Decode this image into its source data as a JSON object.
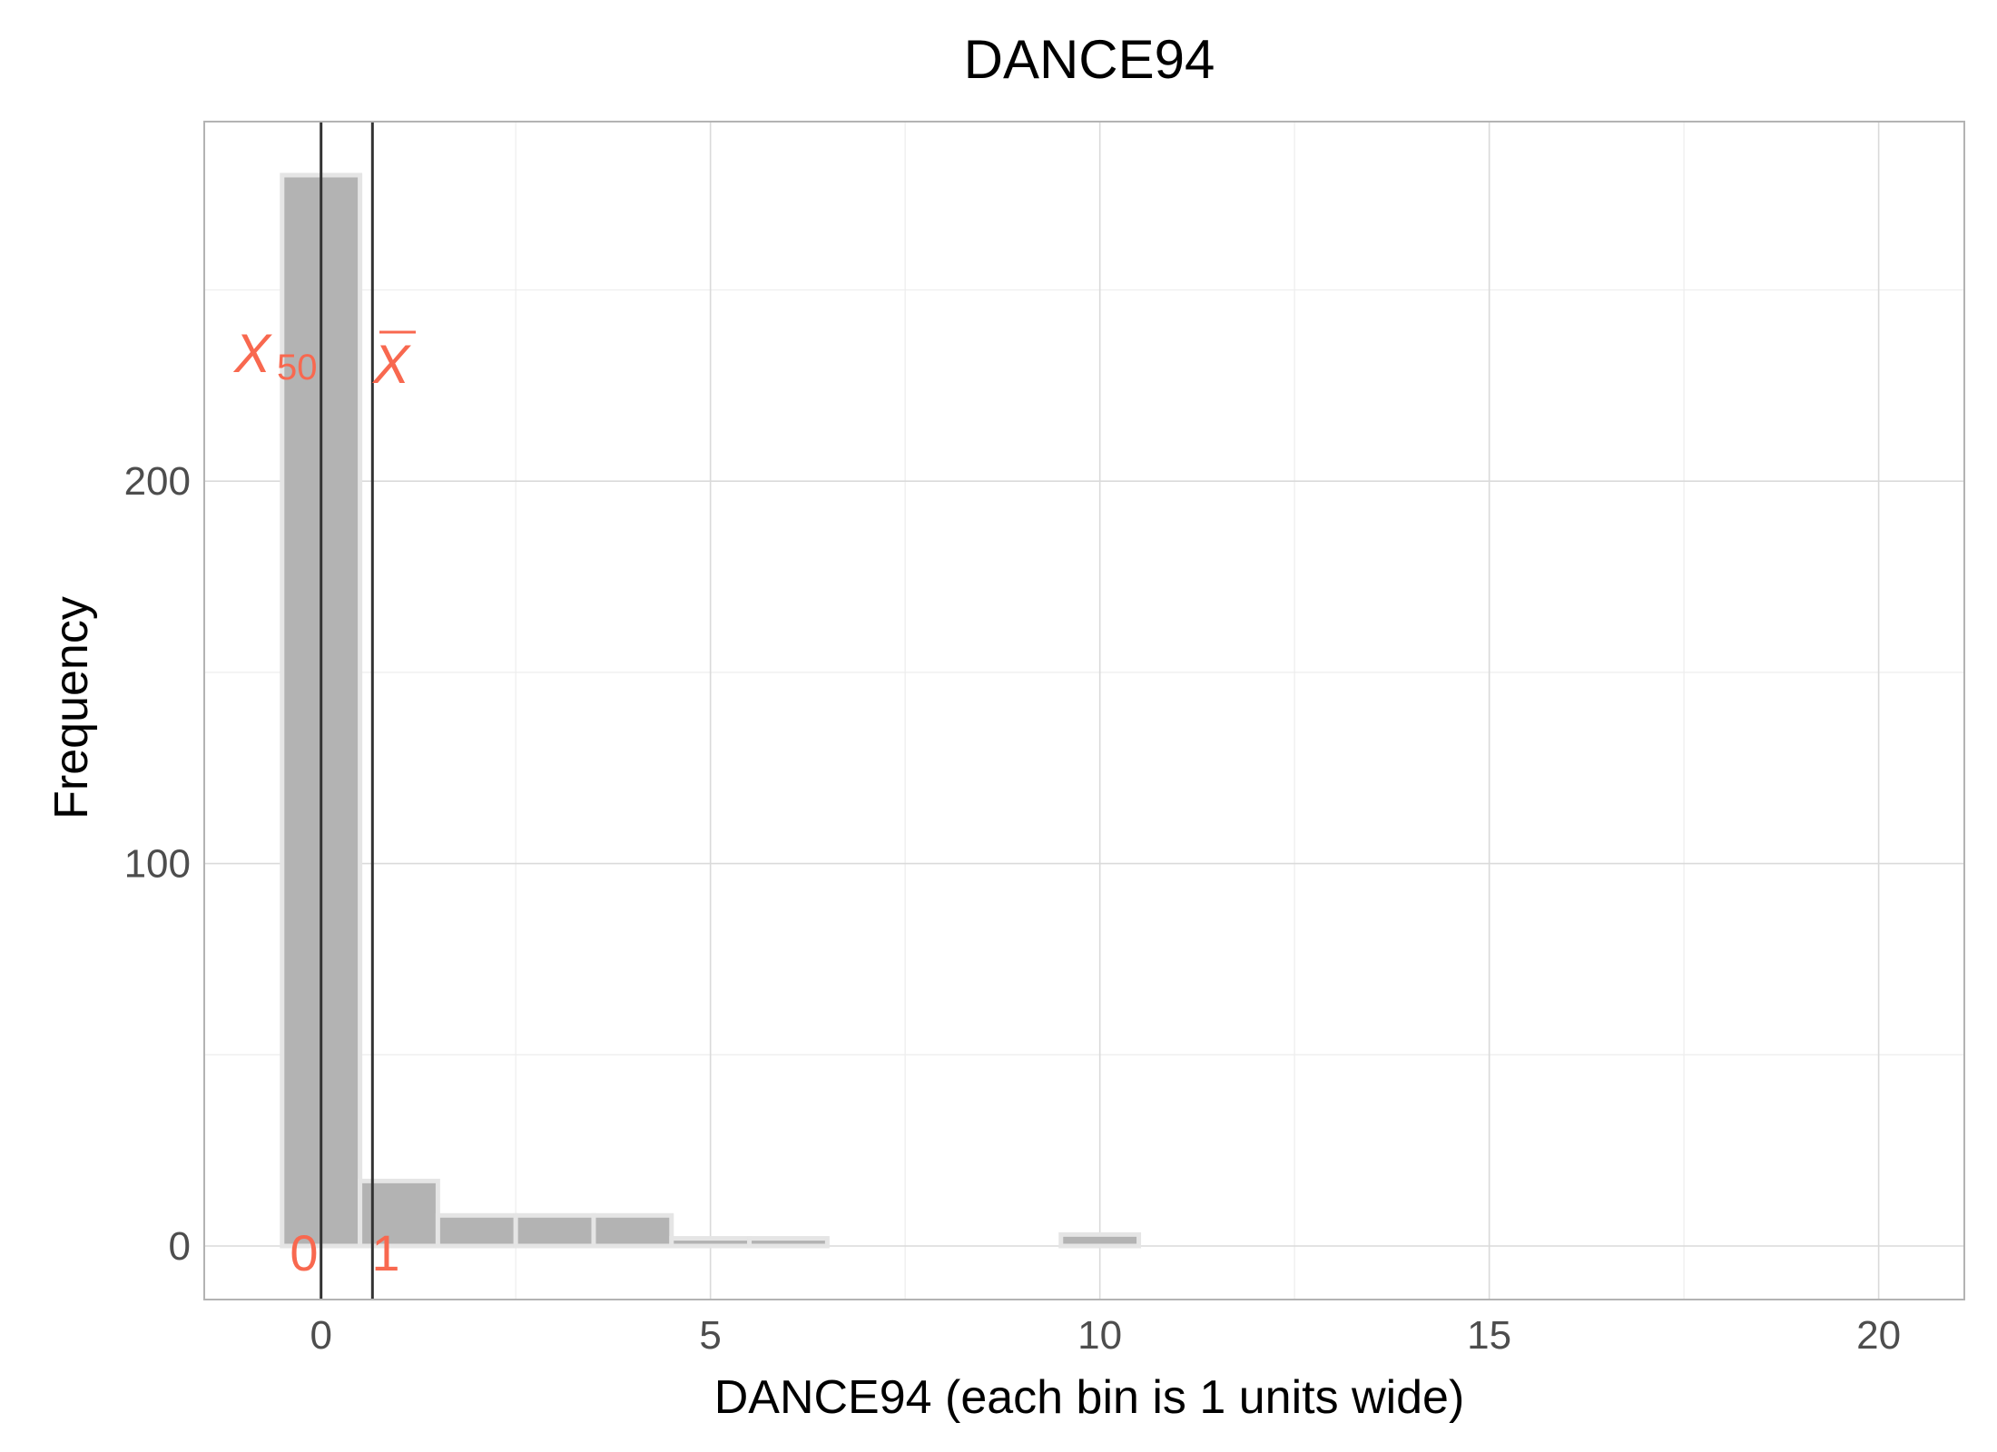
{
  "chart_data": {
    "type": "bar",
    "title": "DANCE94",
    "xlabel": "DANCE94 (each bin is 1 units wide)",
    "ylabel": "Frequency",
    "bin_width": 1,
    "x": [
      0,
      1,
      2,
      3,
      4,
      5,
      6,
      7,
      8,
      9,
      10,
      11,
      12,
      13,
      14,
      15,
      16,
      17,
      18,
      19,
      20
    ],
    "values": [
      280,
      17,
      8,
      8,
      8,
      2,
      2,
      0,
      0,
      0,
      3,
      0,
      0,
      0,
      0,
      0,
      0,
      0,
      0,
      0,
      0
    ],
    "xlim": [
      -1.5,
      21.1
    ],
    "ylim": [
      -14,
      294
    ],
    "x_ticks": [
      0,
      5,
      10,
      15,
      20
    ],
    "x_tick_labels": [
      "0",
      "5",
      "10",
      "15",
      "20"
    ],
    "y_ticks": [
      0,
      100,
      200
    ],
    "y_tick_labels": [
      "0",
      "100",
      "200"
    ],
    "grid": true,
    "reference_lines": [
      {
        "name": "median",
        "symbol": "X",
        "subscript": "50",
        "x": 0,
        "label": "0"
      },
      {
        "name": "mean",
        "symbol": "X",
        "overline": true,
        "x": 0.66,
        "label": "1"
      }
    ],
    "colors": {
      "bar_fill": "#b3b3b3",
      "bar_stroke": "#e5e5e5",
      "reference_line": "#333333",
      "annotation": "#f8684f",
      "grid_major": "#dadada",
      "grid_minor": "#ededed",
      "panel_border": "#b3b3b3",
      "tick_text": "#4d4d4d",
      "title_text": "#000000"
    }
  }
}
